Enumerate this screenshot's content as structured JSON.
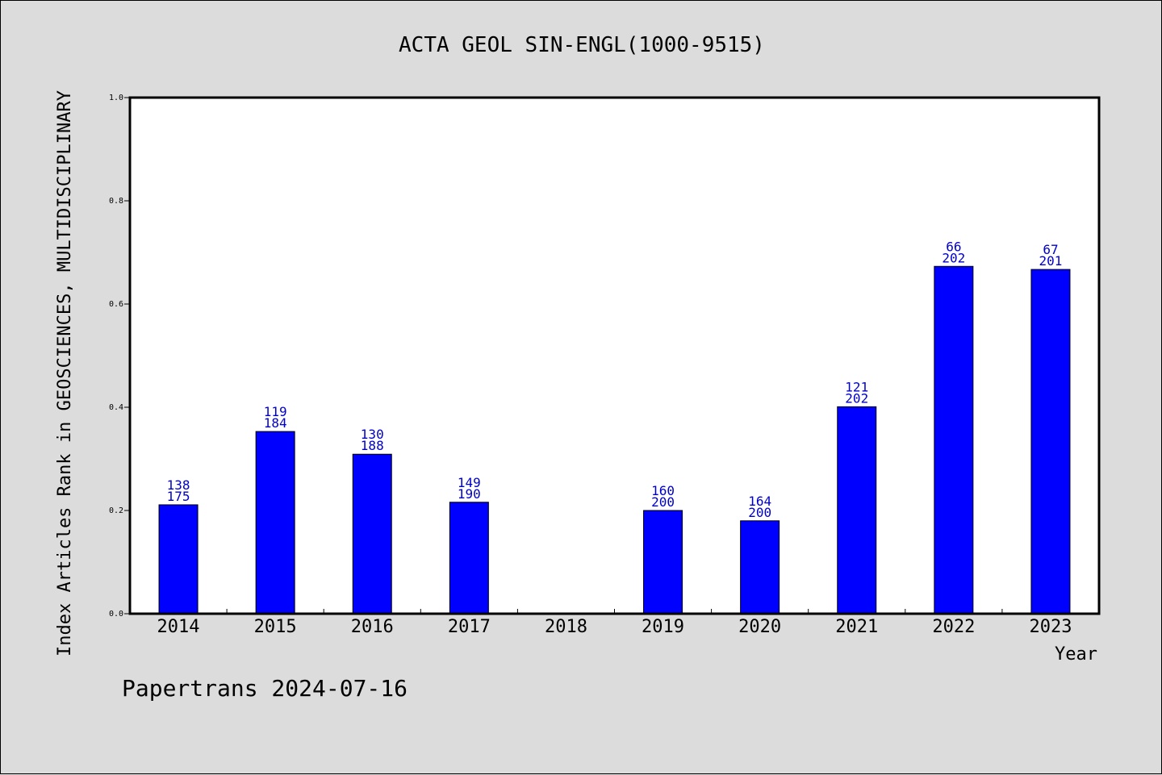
{
  "chart_data": {
    "type": "bar",
    "title": "ACTA GEOL SIN-ENGL(1000-9515)",
    "xlabel": "Year",
    "ylabel": "Index Articles Rank in GEOSCIENCES, MULTIDISCIPLINARY",
    "ylim": [
      0,
      1.0
    ],
    "yticks": [
      "0.0",
      "0.2",
      "0.4",
      "0.6",
      "0.8",
      "1.0"
    ],
    "categories": [
      "2014",
      "2015",
      "2016",
      "2017",
      "2018",
      "2019",
      "2020",
      "2021",
      "2022",
      "2023"
    ],
    "values": [
      0.211,
      0.353,
      0.309,
      0.216,
      null,
      0.2,
      0.18,
      0.401,
      0.673,
      0.667
    ],
    "rank_labels": [
      "138",
      "119",
      "130",
      "149",
      "",
      "160",
      "164",
      "121",
      "66",
      "67"
    ],
    "total_labels": [
      "175",
      "184",
      "188",
      "190",
      "",
      "200",
      "200",
      "202",
      "202",
      "201"
    ],
    "grid": false,
    "colors": {
      "bar": "#0000ff",
      "bar_label": "#0000cc",
      "background": "#dcdcdc",
      "plot_bg": "#ffffff"
    }
  },
  "footer": "Papertrans 2024-07-16"
}
